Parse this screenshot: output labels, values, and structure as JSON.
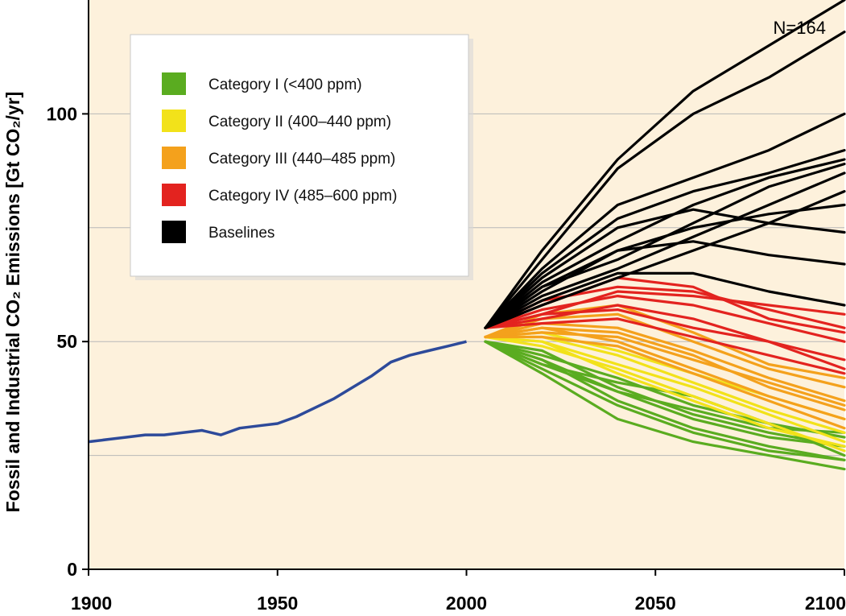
{
  "chart_data": {
    "type": "line",
    "title": "",
    "annotation": "N=164",
    "ylabel": "Fossil and Industrial CO₂ Emissions [Gt CO₂/yr]",
    "xlabel": "",
    "xlim": [
      1900,
      2100
    ],
    "ylim": [
      0,
      125
    ],
    "x_ticks": [
      "1900",
      "1950",
      "2000",
      "2050",
      "2100"
    ],
    "y_ticks": [
      "0",
      "50",
      "100"
    ],
    "grid": "horizontal",
    "legend_placement": "top-left",
    "colors": {
      "background": "#fdf1dc",
      "gridline": "#b8b8b8",
      "historical": "#2d4a9a",
      "cat1": "#5aac20",
      "cat2": "#f2e21a",
      "cat3": "#f4a11c",
      "cat4": "#e3231f",
      "baseline": "#000000"
    },
    "legend": [
      {
        "label": "Category I (<400 ppm)",
        "color_key": "cat1"
      },
      {
        "label": "Category II (400–440 ppm)",
        "color_key": "cat2"
      },
      {
        "label": "Category III (440–485 ppm)",
        "color_key": "cat3"
      },
      {
        "label": "Category IV (485–600 ppm)",
        "color_key": "cat4"
      },
      {
        "label": "Baselines",
        "color_key": "baseline"
      }
    ],
    "historical": {
      "x": [
        1900,
        1905,
        1910,
        1915,
        1920,
        1925,
        1930,
        1935,
        1940,
        1945,
        1950,
        1955,
        1960,
        1965,
        1970,
        1975,
        1980,
        1985,
        1990,
        1995,
        2000
      ],
      "y": [
        28,
        28.5,
        29,
        29.5,
        29.5,
        30,
        30.5,
        29.5,
        31,
        31.5,
        32,
        33.5,
        35.5,
        37.5,
        40,
        42.5,
        45.5,
        47,
        48,
        49,
        50
      ]
    },
    "series": [
      {
        "category": "cat1",
        "x": [
          2005,
          2020,
          2040,
          2060,
          2080,
          2100
        ],
        "y": [
          50,
          47,
          42,
          36,
          32,
          29
        ]
      },
      {
        "category": "cat1",
        "x": [
          2005,
          2020,
          2040,
          2060,
          2080,
          2100
        ],
        "y": [
          50,
          45,
          39,
          33,
          29,
          27
        ]
      },
      {
        "category": "cat1",
        "x": [
          2005,
          2020,
          2040,
          2060,
          2080,
          2100
        ],
        "y": [
          50,
          46,
          37,
          31,
          27,
          24
        ]
      },
      {
        "category": "cat1",
        "x": [
          2005,
          2020,
          2040,
          2060,
          2080,
          2100
        ],
        "y": [
          50,
          43,
          33,
          28,
          25,
          22
        ]
      },
      {
        "category": "cat1",
        "x": [
          2005,
          2020,
          2040,
          2060,
          2080,
          2100
        ],
        "y": [
          50,
          44,
          36,
          30,
          26,
          24
        ]
      },
      {
        "category": "cat1",
        "x": [
          2005,
          2020,
          2040,
          2060,
          2080,
          2100
        ],
        "y": [
          50,
          48,
          40,
          34,
          30,
          27
        ]
      },
      {
        "category": "cat1",
        "x": [
          2005,
          2020,
          2040,
          2060,
          2080,
          2100
        ],
        "y": [
          50,
          46,
          39,
          35,
          31,
          30
        ]
      },
      {
        "category": "cat1",
        "x": [
          2005,
          2020,
          2040,
          2060,
          2080,
          2100
        ],
        "y": [
          50,
          45,
          41,
          38,
          32,
          25
        ]
      },
      {
        "category": "cat2",
        "x": [
          2005,
          2020,
          2040,
          2060,
          2080,
          2100
        ],
        "y": [
          51,
          50,
          45,
          40,
          34,
          28
        ]
      },
      {
        "category": "cat2",
        "x": [
          2005,
          2020,
          2040,
          2060,
          2080,
          2100
        ],
        "y": [
          51,
          49,
          44,
          38,
          32,
          26
        ]
      },
      {
        "category": "cat2",
        "x": [
          2005,
          2020,
          2040,
          2060,
          2080,
          2100
        ],
        "y": [
          51,
          51,
          47,
          41,
          35,
          30
        ]
      },
      {
        "category": "cat2",
        "x": [
          2005,
          2020,
          2040,
          2060,
          2080,
          2100
        ],
        "y": [
          51,
          50,
          43,
          37,
          31,
          27
        ]
      },
      {
        "category": "cat2",
        "x": [
          2005,
          2020,
          2040,
          2060,
          2080,
          2100
        ],
        "y": [
          51,
          52,
          48,
          43,
          38,
          33
        ]
      },
      {
        "category": "cat3",
        "x": [
          2005,
          2020,
          2040,
          2060,
          2080,
          2100
        ],
        "y": [
          51,
          52,
          51,
          46,
          41,
          36
        ]
      },
      {
        "category": "cat3",
        "x": [
          2005,
          2020,
          2040,
          2060,
          2080,
          2100
        ],
        "y": [
          51,
          54,
          53,
          48,
          42,
          37
        ]
      },
      {
        "category": "cat3",
        "x": [
          2005,
          2020,
          2040,
          2060,
          2080,
          2100
        ],
        "y": [
          51,
          53,
          50,
          44,
          38,
          33
        ]
      },
      {
        "category": "cat3",
        "x": [
          2005,
          2020,
          2040,
          2060,
          2080,
          2100
        ],
        "y": [
          51,
          55,
          56,
          50,
          44,
          40
        ]
      },
      {
        "category": "cat3",
        "x": [
          2005,
          2020,
          2040,
          2060,
          2080,
          2100
        ],
        "y": [
          51,
          51,
          49,
          43,
          37,
          31
        ]
      },
      {
        "category": "cat3",
        "x": [
          2005,
          2020,
          2040,
          2060,
          2080,
          2100
        ],
        "y": [
          51,
          56,
          58,
          52,
          45,
          42
        ]
      },
      {
        "category": "cat3",
        "x": [
          2005,
          2020,
          2040,
          2060,
          2080,
          2100
        ],
        "y": [
          51,
          53,
          52,
          47,
          40,
          35
        ]
      },
      {
        "category": "cat4",
        "x": [
          2005,
          2020,
          2040,
          2060,
          2080,
          2100
        ],
        "y": [
          53,
          56,
          61,
          60,
          58,
          56
        ]
      },
      {
        "category": "cat4",
        "x": [
          2005,
          2020,
          2040,
          2060,
          2080,
          2100
        ],
        "y": [
          53,
          58,
          64,
          62,
          55,
          52
        ]
      },
      {
        "category": "cat4",
        "x": [
          2005,
          2020,
          2040,
          2060,
          2080,
          2100
        ],
        "y": [
          53,
          55,
          58,
          55,
          50,
          46
        ]
      },
      {
        "category": "cat4",
        "x": [
          2005,
          2020,
          2040,
          2060,
          2080,
          2100
        ],
        "y": [
          53,
          57,
          60,
          58,
          54,
          50
        ]
      },
      {
        "category": "cat4",
        "x": [
          2005,
          2020,
          2040,
          2060,
          2080,
          2100
        ],
        "y": [
          53,
          59,
          62,
          61,
          57,
          53
        ]
      },
      {
        "category": "cat4",
        "x": [
          2005,
          2020,
          2040,
          2060,
          2080,
          2100
        ],
        "y": [
          53,
          54,
          55,
          51,
          47,
          43
        ]
      },
      {
        "category": "cat4",
        "x": [
          2005,
          2020,
          2040,
          2060,
          2080,
          2100
        ],
        "y": [
          53,
          56,
          57,
          53,
          50,
          44
        ]
      },
      {
        "category": "baseline",
        "x": [
          2005,
          2020,
          2040,
          2060,
          2080,
          2100
        ],
        "y": [
          53,
          65,
          77,
          83,
          87,
          92
        ]
      },
      {
        "category": "baseline",
        "x": [
          2005,
          2020,
          2040,
          2060,
          2080,
          2100
        ],
        "y": [
          53,
          63,
          72,
          80,
          86,
          90
        ]
      },
      {
        "category": "baseline",
        "x": [
          2005,
          2020,
          2040,
          2060,
          2080,
          2100
        ],
        "y": [
          53,
          62,
          68,
          76,
          84,
          89
        ]
      },
      {
        "category": "baseline",
        "x": [
          2005,
          2020,
          2040,
          2060,
          2080,
          2100
        ],
        "y": [
          53,
          60,
          66,
          73,
          80,
          87
        ]
      },
      {
        "category": "baseline",
        "x": [
          2005,
          2020,
          2040,
          2060,
          2080,
          2100
        ],
        "y": [
          53,
          58,
          64,
          70,
          76,
          83
        ]
      },
      {
        "category": "baseline",
        "x": [
          2005,
          2020,
          2040,
          2060,
          2080,
          2100
        ],
        "y": [
          53,
          61,
          70,
          75,
          78,
          80
        ]
      },
      {
        "category": "baseline",
        "x": [
          2005,
          2020,
          2040,
          2060,
          2080,
          2100
        ],
        "y": [
          53,
          66,
          80,
          86,
          92,
          100
        ]
      },
      {
        "category": "baseline",
        "x": [
          2005,
          2020,
          2040,
          2060,
          2080,
          2100
        ],
        "y": [
          53,
          70,
          90,
          105,
          115,
          125
        ]
      },
      {
        "category": "baseline",
        "x": [
          2005,
          2020,
          2040,
          2060,
          2080,
          2100
        ],
        "y": [
          53,
          68,
          88,
          100,
          108,
          118
        ]
      },
      {
        "category": "baseline",
        "x": [
          2005,
          2020,
          2040,
          2060,
          2080,
          2100
        ],
        "y": [
          53,
          64,
          75,
          79,
          76,
          74
        ]
      },
      {
        "category": "baseline",
        "x": [
          2005,
          2020,
          2040,
          2060,
          2080,
          2100
        ],
        "y": [
          53,
          62,
          70,
          72,
          69,
          67
        ]
      },
      {
        "category": "baseline",
        "x": [
          2005,
          2020,
          2040,
          2060,
          2080,
          2100
        ],
        "y": [
          53,
          59,
          65,
          65,
          61,
          58
        ]
      }
    ]
  }
}
